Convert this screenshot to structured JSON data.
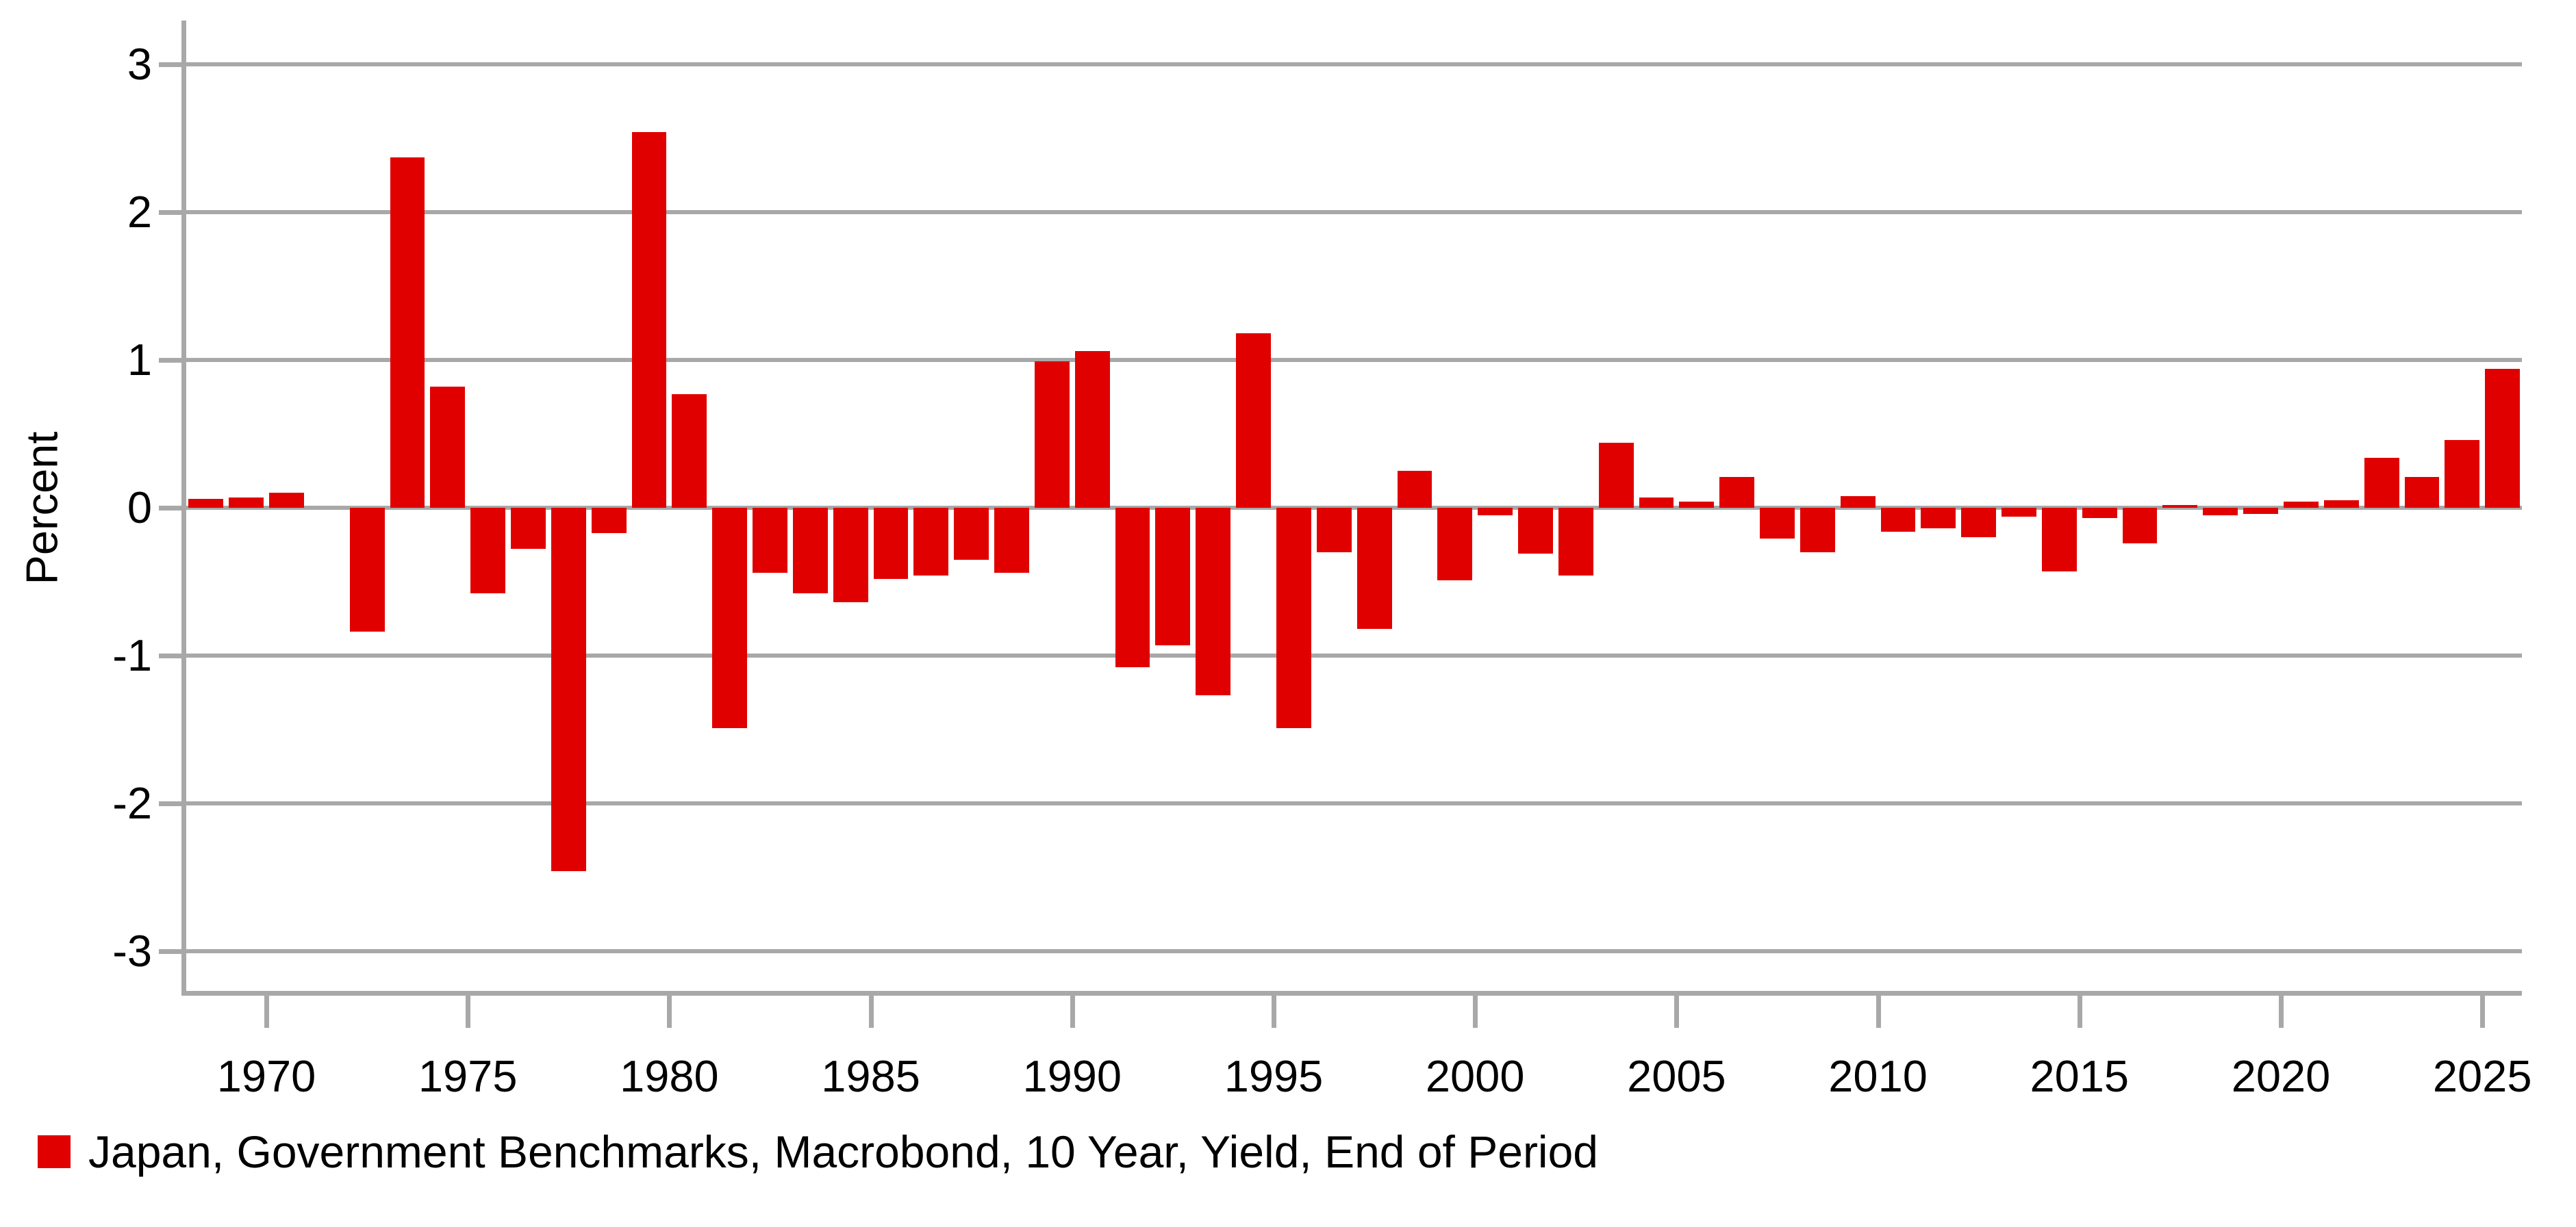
{
  "y_axis": {
    "title": "Percent",
    "tick_labels": [
      "3",
      "2",
      "1",
      "0",
      "-1",
      "-2",
      "-3"
    ],
    "tick_values": [
      3,
      2,
      1,
      0,
      -1,
      -2,
      -3
    ]
  },
  "x_axis": {
    "tick_labels": [
      "1970",
      "1975",
      "1980",
      "1985",
      "1990",
      "1995",
      "2000",
      "2005",
      "2010",
      "2015",
      "2020",
      "2025"
    ],
    "tick_values": [
      1970,
      1975,
      1980,
      1985,
      1990,
      1995,
      2000,
      2005,
      2010,
      2015,
      2020,
      2025
    ]
  },
  "legend": {
    "label": "Japan, Government Benchmarks, Macrobond, 10 Year, Yield, End of Period"
  },
  "colors": {
    "bar": "#e00000",
    "grid": "#a8a8a8",
    "text": "#000000",
    "background": "#ffffff"
  },
  "chart_data": {
    "type": "bar",
    "title": "",
    "xlabel": "",
    "ylabel": "Percent",
    "ylim": [
      -3.3,
      3.3
    ],
    "grid": true,
    "gridline_values": [
      3,
      2,
      1,
      0,
      -1,
      -2,
      -3
    ],
    "legend_position": "bottom-left",
    "x_tick_interval": 5,
    "series": [
      {
        "name": "Japan, Government Benchmarks, Macrobond, 10 Year, Yield, End of Period",
        "x": [
          1968,
          1969,
          1970,
          1971,
          1972,
          1973,
          1974,
          1975,
          1976,
          1977,
          1978,
          1979,
          1980,
          1981,
          1982,
          1983,
          1984,
          1985,
          1986,
          1987,
          1988,
          1989,
          1990,
          1991,
          1992,
          1993,
          1994,
          1995,
          1996,
          1997,
          1998,
          1999,
          2000,
          2001,
          2002,
          2003,
          2004,
          2005,
          2006,
          2007,
          2008,
          2009,
          2010,
          2011,
          2012,
          2013,
          2014,
          2015,
          2016,
          2017,
          2018,
          2019,
          2020,
          2021,
          2022,
          2023,
          2024,
          2025
        ],
        "values": [
          0.06,
          0.07,
          0.1,
          0.0,
          -0.84,
          2.37,
          0.82,
          -0.58,
          -0.28,
          -2.46,
          -0.17,
          2.54,
          0.77,
          -1.49,
          -0.44,
          -0.58,
          -0.64,
          -0.48,
          -0.46,
          -0.35,
          -0.44,
          0.99,
          1.06,
          -1.08,
          -0.93,
          -1.27,
          1.18,
          -1.49,
          -0.3,
          -0.82,
          0.25,
          -0.49,
          -0.05,
          -0.31,
          -0.46,
          0.44,
          0.07,
          0.04,
          0.21,
          -0.21,
          -0.3,
          0.08,
          -0.16,
          -0.14,
          -0.2,
          -0.06,
          -0.43,
          -0.07,
          -0.24,
          0.02,
          -0.05,
          -0.04,
          0.04,
          0.05,
          0.34,
          0.21,
          0.46,
          0.94
        ]
      }
    ]
  }
}
